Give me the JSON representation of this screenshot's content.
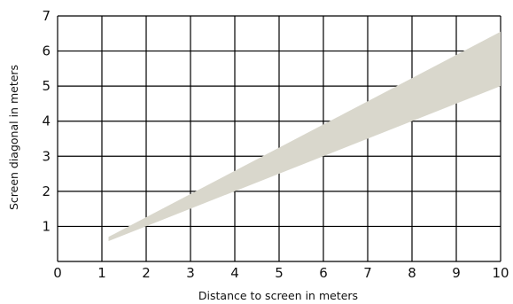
{
  "chart_data": {
    "type": "area",
    "title": "",
    "xlabel": "Distance to screen in meters",
    "ylabel": "Screen diagonal in meters",
    "xlim": [
      0,
      10
    ],
    "ylim": [
      0,
      7
    ],
    "x_ticks": [
      "0",
      "1",
      "2",
      "3",
      "4",
      "5",
      "6",
      "7",
      "8",
      "9",
      "10"
    ],
    "y_ticks": [
      "1",
      "2",
      "3",
      "4",
      "5",
      "6",
      "7"
    ],
    "grid": true,
    "legend": "none",
    "series": [
      {
        "x": [
          1.15,
          10
        ],
        "lower": [
          0.58,
          5.0
        ],
        "upper": [
          0.7,
          6.55
        ]
      }
    ],
    "colors": {
      "band": "#d9d7cc",
      "grid": "#000000",
      "text": "#111111"
    }
  }
}
